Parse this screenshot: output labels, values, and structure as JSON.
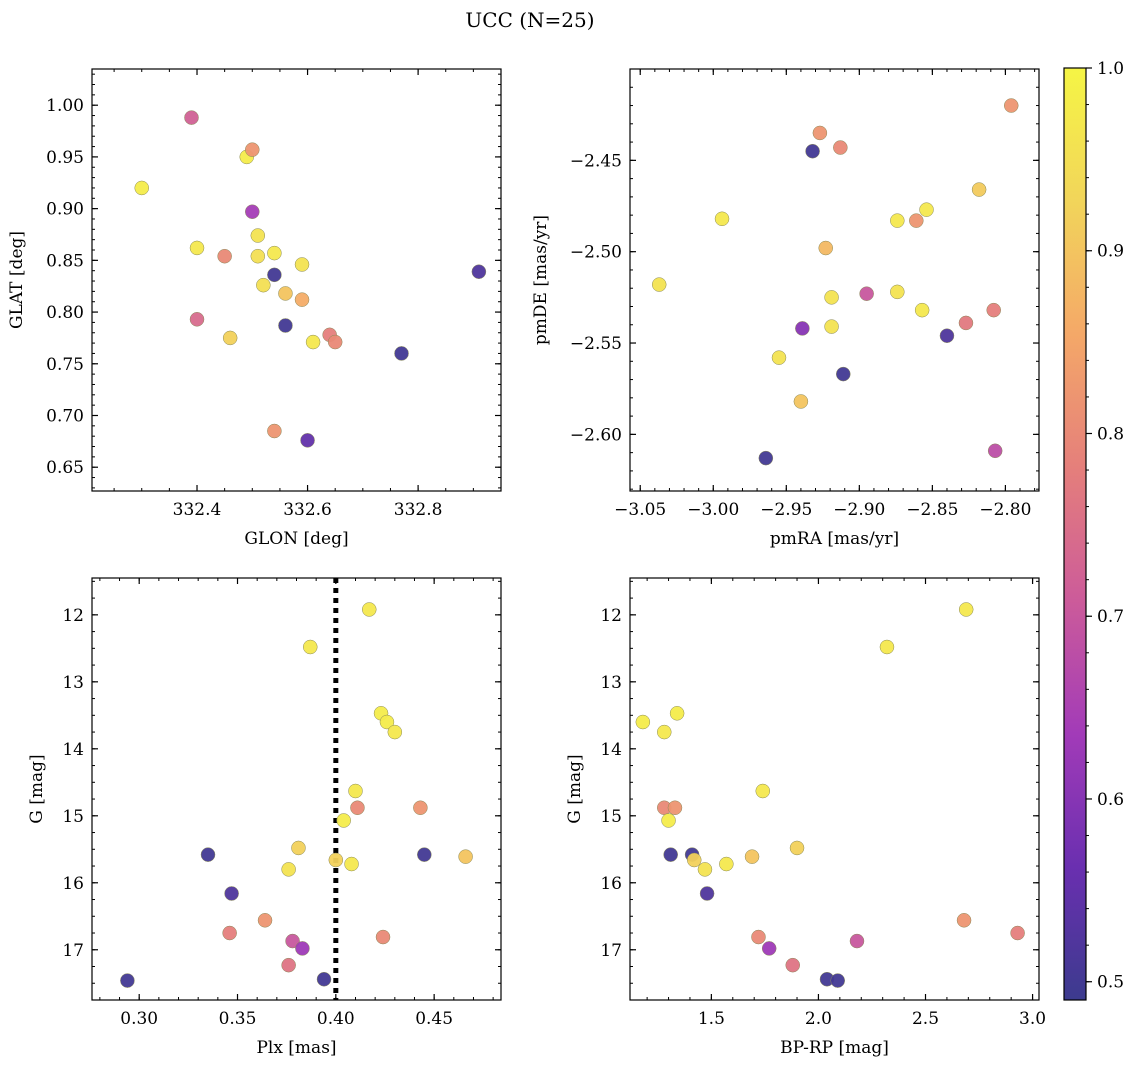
{
  "title": "UCC (N=25)",
  "chart_data": [
    {
      "type": "scatter",
      "xlabel": "GLON [deg]",
      "ylabel": "GLAT [deg]",
      "xlim": [
        332.21,
        332.95
      ],
      "ylim": [
        0.627,
        1.035
      ],
      "xinvert": false,
      "yinvert": false,
      "xticks": [
        332.4,
        332.6,
        332.8
      ],
      "yticks": [
        0.65,
        0.7,
        0.75,
        0.8,
        0.85,
        0.9,
        0.95,
        1.0
      ],
      "xminor": 0.05,
      "yminor": 0.01,
      "xdec": 1,
      "ydec": 2,
      "points": [
        {
          "x": 332.3,
          "y": 0.92,
          "c": 0.98
        },
        {
          "x": 332.39,
          "y": 0.988,
          "c": 0.72
        },
        {
          "x": 332.49,
          "y": 0.95,
          "c": 0.98
        },
        {
          "x": 332.5,
          "y": 0.957,
          "c": 0.82
        },
        {
          "x": 332.5,
          "y": 0.897,
          "c": 0.64
        },
        {
          "x": 332.4,
          "y": 0.862,
          "c": 0.97
        },
        {
          "x": 332.51,
          "y": 0.874,
          "c": 0.96
        },
        {
          "x": 332.45,
          "y": 0.854,
          "c": 0.8
        },
        {
          "x": 332.51,
          "y": 0.854,
          "c": 0.95
        },
        {
          "x": 332.54,
          "y": 0.857,
          "c": 0.97
        },
        {
          "x": 332.59,
          "y": 0.846,
          "c": 0.96
        },
        {
          "x": 332.54,
          "y": 0.836,
          "c": 0.5
        },
        {
          "x": 332.52,
          "y": 0.826,
          "c": 0.95
        },
        {
          "x": 332.56,
          "y": 0.818,
          "c": 0.9
        },
        {
          "x": 332.59,
          "y": 0.812,
          "c": 0.86
        },
        {
          "x": 332.4,
          "y": 0.793,
          "c": 0.74
        },
        {
          "x": 332.56,
          "y": 0.787,
          "c": 0.5
        },
        {
          "x": 332.46,
          "y": 0.775,
          "c": 0.92
        },
        {
          "x": 332.64,
          "y": 0.778,
          "c": 0.78
        },
        {
          "x": 332.61,
          "y": 0.771,
          "c": 0.97
        },
        {
          "x": 332.65,
          "y": 0.771,
          "c": 0.8
        },
        {
          "x": 332.77,
          "y": 0.76,
          "c": 0.5
        },
        {
          "x": 332.54,
          "y": 0.685,
          "c": 0.82
        },
        {
          "x": 332.6,
          "y": 0.676,
          "c": 0.55
        },
        {
          "x": 332.91,
          "y": 0.839,
          "c": 0.52
        }
      ]
    },
    {
      "type": "scatter",
      "xlabel": "pmRA [mas/yr]",
      "ylabel": "pmDE [mas/yr]",
      "xlim": [
        -3.057,
        -2.777
      ],
      "ylim": [
        -2.631,
        -2.4
      ],
      "xinvert": false,
      "yinvert": false,
      "xticks": [
        -3.05,
        -3.0,
        -2.95,
        -2.9,
        -2.85,
        -2.8
      ],
      "yticks": [
        -2.6,
        -2.55,
        -2.5,
        -2.45
      ],
      "xminor": 0.01,
      "yminor": 0.01,
      "xdec": 2,
      "ydec": 2,
      "points": [
        {
          "x": -2.796,
          "y": -2.42,
          "c": 0.82
        },
        {
          "x": -2.927,
          "y": -2.435,
          "c": 0.82
        },
        {
          "x": -2.932,
          "y": -2.445,
          "c": 0.5
        },
        {
          "x": -2.913,
          "y": -2.443,
          "c": 0.8
        },
        {
          "x": -2.818,
          "y": -2.466,
          "c": 0.91
        },
        {
          "x": -2.994,
          "y": -2.482,
          "c": 0.97
        },
        {
          "x": -2.874,
          "y": -2.483,
          "c": 0.97
        },
        {
          "x": -2.861,
          "y": -2.483,
          "c": 0.82
        },
        {
          "x": -2.854,
          "y": -2.477,
          "c": 0.97
        },
        {
          "x": -2.923,
          "y": -2.498,
          "c": 0.88
        },
        {
          "x": -3.037,
          "y": -2.518,
          "c": 0.96
        },
        {
          "x": -2.919,
          "y": -2.525,
          "c": 0.96
        },
        {
          "x": -2.895,
          "y": -2.523,
          "c": 0.7
        },
        {
          "x": -2.874,
          "y": -2.522,
          "c": 0.96
        },
        {
          "x": -2.857,
          "y": -2.532,
          "c": 0.97
        },
        {
          "x": -2.808,
          "y": -2.532,
          "c": 0.78
        },
        {
          "x": -2.827,
          "y": -2.539,
          "c": 0.77
        },
        {
          "x": -2.939,
          "y": -2.542,
          "c": 0.6
        },
        {
          "x": -2.919,
          "y": -2.541,
          "c": 0.96
        },
        {
          "x": -2.84,
          "y": -2.546,
          "c": 0.52
        },
        {
          "x": -2.955,
          "y": -2.558,
          "c": 0.96
        },
        {
          "x": -2.911,
          "y": -2.567,
          "c": 0.5
        },
        {
          "x": -2.94,
          "y": -2.582,
          "c": 0.9
        },
        {
          "x": -2.807,
          "y": -2.609,
          "c": 0.68
        },
        {
          "x": -2.964,
          "y": -2.613,
          "c": 0.5
        }
      ]
    },
    {
      "type": "scatter",
      "xlabel": "Plx [mas]",
      "ylabel": "G [mag]",
      "xlim": [
        0.276,
        0.484
      ],
      "ylim": [
        11.45,
        17.75
      ],
      "xinvert": false,
      "yinvert": true,
      "xticks": [
        0.3,
        0.35,
        0.4,
        0.45
      ],
      "yticks": [
        12,
        13,
        14,
        15,
        16,
        17
      ],
      "xminor": 0.01,
      "yminor": 0.25,
      "xdec": 2,
      "ydec": 0,
      "vline": 0.4,
      "points": [
        {
          "x": 0.417,
          "y": 11.92,
          "c": 0.97
        },
        {
          "x": 0.387,
          "y": 12.48,
          "c": 0.97
        },
        {
          "x": 0.423,
          "y": 13.47,
          "c": 0.98
        },
        {
          "x": 0.426,
          "y": 13.6,
          "c": 0.98
        },
        {
          "x": 0.43,
          "y": 13.75,
          "c": 0.97
        },
        {
          "x": 0.41,
          "y": 14.63,
          "c": 0.97
        },
        {
          "x": 0.411,
          "y": 14.88,
          "c": 0.8
        },
        {
          "x": 0.443,
          "y": 14.88,
          "c": 0.82
        },
        {
          "x": 0.404,
          "y": 15.07,
          "c": 0.98
        },
        {
          "x": 0.335,
          "y": 15.58,
          "c": 0.5
        },
        {
          "x": 0.381,
          "y": 15.48,
          "c": 0.92
        },
        {
          "x": 0.445,
          "y": 15.58,
          "c": 0.5
        },
        {
          "x": 0.466,
          "y": 15.61,
          "c": 0.9
        },
        {
          "x": 0.4,
          "y": 15.66,
          "c": 0.92
        },
        {
          "x": 0.408,
          "y": 15.72,
          "c": 0.97
        },
        {
          "x": 0.376,
          "y": 15.8,
          "c": 0.96
        },
        {
          "x": 0.347,
          "y": 16.16,
          "c": 0.52
        },
        {
          "x": 0.364,
          "y": 16.56,
          "c": 0.82
        },
        {
          "x": 0.346,
          "y": 16.75,
          "c": 0.78
        },
        {
          "x": 0.424,
          "y": 16.81,
          "c": 0.8
        },
        {
          "x": 0.378,
          "y": 16.87,
          "c": 0.7
        },
        {
          "x": 0.383,
          "y": 16.98,
          "c": 0.63
        },
        {
          "x": 0.376,
          "y": 17.23,
          "c": 0.76
        },
        {
          "x": 0.394,
          "y": 17.44,
          "c": 0.5
        },
        {
          "x": 0.294,
          "y": 17.46,
          "c": 0.5
        }
      ]
    },
    {
      "type": "scatter",
      "xlabel": "BP-RP [mag]",
      "ylabel": "G [mag]",
      "xlim": [
        1.12,
        3.03
      ],
      "ylim": [
        11.45,
        17.75
      ],
      "xinvert": false,
      "yinvert": true,
      "xticks": [
        1.5,
        2.0,
        2.5,
        3.0
      ],
      "yticks": [
        12,
        13,
        14,
        15,
        16,
        17
      ],
      "xminor": 0.1,
      "yminor": 0.25,
      "xdec": 1,
      "ydec": 0,
      "points": [
        {
          "x": 2.69,
          "y": 11.92,
          "c": 0.97
        },
        {
          "x": 2.32,
          "y": 12.48,
          "c": 0.97
        },
        {
          "x": 1.18,
          "y": 13.6,
          "c": 0.98
        },
        {
          "x": 1.34,
          "y": 13.47,
          "c": 0.98
        },
        {
          "x": 1.28,
          "y": 13.75,
          "c": 0.97
        },
        {
          "x": 1.74,
          "y": 14.63,
          "c": 0.97
        },
        {
          "x": 1.28,
          "y": 14.88,
          "c": 0.8
        },
        {
          "x": 1.33,
          "y": 14.88,
          "c": 0.82
        },
        {
          "x": 1.3,
          "y": 15.07,
          "c": 0.98
        },
        {
          "x": 1.31,
          "y": 15.58,
          "c": 0.5
        },
        {
          "x": 1.41,
          "y": 15.58,
          "c": 0.5
        },
        {
          "x": 1.42,
          "y": 15.66,
          "c": 0.92
        },
        {
          "x": 1.9,
          "y": 15.48,
          "c": 0.92
        },
        {
          "x": 1.69,
          "y": 15.61,
          "c": 0.9
        },
        {
          "x": 1.57,
          "y": 15.72,
          "c": 0.97
        },
        {
          "x": 1.47,
          "y": 15.8,
          "c": 0.96
        },
        {
          "x": 1.48,
          "y": 16.16,
          "c": 0.52
        },
        {
          "x": 2.68,
          "y": 16.56,
          "c": 0.82
        },
        {
          "x": 2.93,
          "y": 16.75,
          "c": 0.78
        },
        {
          "x": 1.72,
          "y": 16.81,
          "c": 0.8
        },
        {
          "x": 2.18,
          "y": 16.87,
          "c": 0.7
        },
        {
          "x": 1.77,
          "y": 16.98,
          "c": 0.63
        },
        {
          "x": 1.88,
          "y": 17.23,
          "c": 0.76
        },
        {
          "x": 2.04,
          "y": 17.44,
          "c": 0.5
        },
        {
          "x": 2.09,
          "y": 17.46,
          "c": 0.5
        }
      ]
    }
  ],
  "colorbar": {
    "range": [
      0.49,
      1.0
    ],
    "ticks": [
      0.5,
      0.6,
      0.7,
      0.8,
      0.9,
      1.0
    ],
    "colormap": "plasma",
    "stops": [
      "#3c3b8e",
      "#6a2fb0",
      "#a23bb8",
      "#cc5b9a",
      "#e57f7b",
      "#f4a868",
      "#f2d55a",
      "#f5f545"
    ]
  }
}
